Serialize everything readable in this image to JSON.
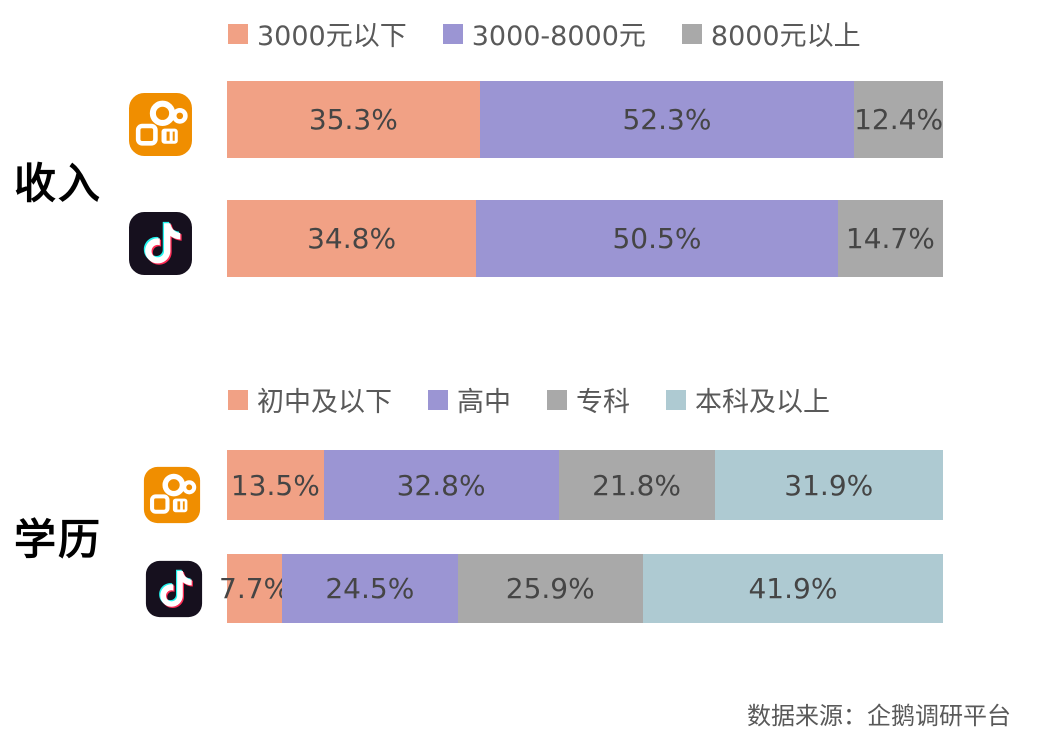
{
  "source_note": "数据来源：企鹅调研平台",
  "colors": {
    "salmon": "#F1A185",
    "purple": "#9B95D3",
    "gray": "#A9A9A9",
    "light_blue": "#AECAD2",
    "value_label_text": "#454545",
    "legend_text": "#595959",
    "kuaishou_orange": "#F08E00",
    "douyin_dark": "#16101E",
    "douyin_cyan": "#25F4EE",
    "douyin_pink": "#FE2C55"
  },
  "icons": [
    {
      "name": "kuaishou-app-icon",
      "meaning": "快手"
    },
    {
      "name": "douyin-app-icon",
      "meaning": "抖音"
    }
  ],
  "chart_data": [
    {
      "type": "bar",
      "orientation": "horizontal",
      "stacked": true,
      "title": "收入",
      "legend_position": "top",
      "categories": [
        "快手",
        "抖音"
      ],
      "series": [
        {
          "name": "3000元以下",
          "color": "#F1A185",
          "values": [
            35.3,
            34.8
          ]
        },
        {
          "name": "3000-8000元",
          "color": "#9B95D3",
          "values": [
            52.3,
            50.5
          ]
        },
        {
          "name": "8000元以上",
          "color": "#A9A9A9",
          "values": [
            12.4,
            14.7
          ]
        }
      ],
      "value_labels": [
        [
          "35.3%",
          "52.3%",
          "12.4%"
        ],
        [
          "34.8%",
          "50.5%",
          "14.7%"
        ]
      ],
      "xlim": [
        0,
        100
      ],
      "grid": false
    },
    {
      "type": "bar",
      "orientation": "horizontal",
      "stacked": true,
      "title": "学历",
      "legend_position": "top",
      "categories": [
        "快手",
        "抖音"
      ],
      "series": [
        {
          "name": "初中及以下",
          "color": "#F1A185",
          "values": [
            13.5,
            7.7
          ]
        },
        {
          "name": "高中",
          "color": "#9B95D3",
          "values": [
            32.8,
            24.5
          ]
        },
        {
          "name": "专科",
          "color": "#A9A9A9",
          "values": [
            21.8,
            25.9
          ]
        },
        {
          "name": "本科及以上",
          "color": "#AECAD2",
          "values": [
            31.9,
            41.9
          ]
        }
      ],
      "value_labels": [
        [
          "13.5%",
          "32.8%",
          "21.8%",
          "31.9%"
        ],
        [
          "7.7%",
          "24.5%",
          "25.9%",
          "41.9%"
        ]
      ],
      "xlim": [
        0,
        100
      ],
      "grid": false
    }
  ]
}
